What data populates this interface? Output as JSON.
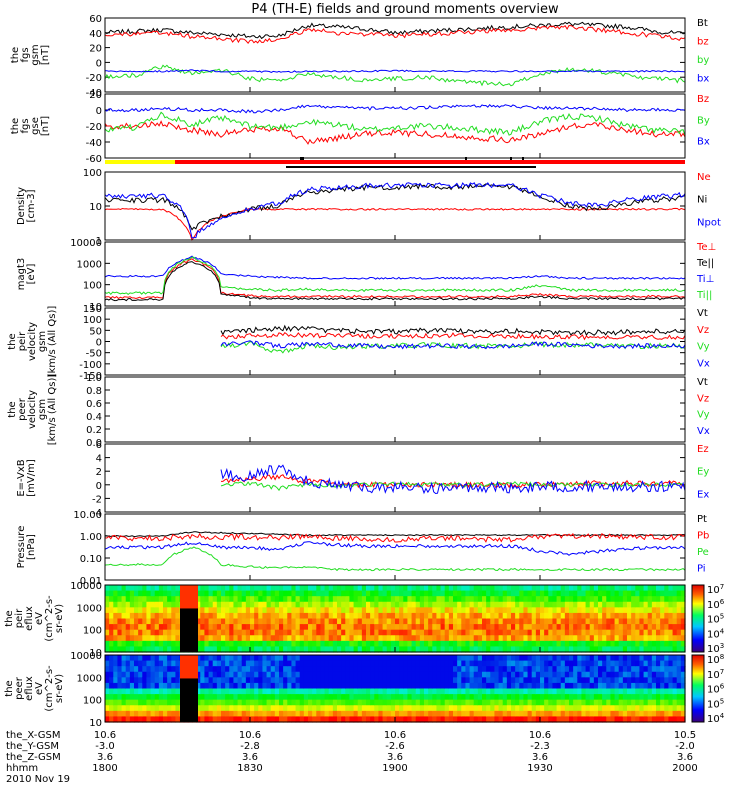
{
  "title": "P4 (TH-E) fields and ground moments overview",
  "colors": {
    "black": "#000000",
    "red": "#ff0000",
    "green": "#22dd22",
    "blue": "#0000ff",
    "yellow": "#ffff00"
  },
  "chart_data": [
    {
      "type": "line",
      "id": "fgs-gsm",
      "ylabel": [
        "the",
        "fgs",
        "gsm",
        "[nT]"
      ],
      "ylim": [
        -40,
        60
      ],
      "yticks": [
        "60",
        "40",
        "20",
        "0",
        "-20",
        "-40"
      ],
      "log": false,
      "series": [
        {
          "name": "Bt",
          "color": "black",
          "base": [
            40,
            42,
            44,
            40,
            38,
            35,
            36,
            50,
            48,
            45,
            40,
            42,
            44,
            46,
            48,
            50,
            52,
            50,
            48,
            42,
            38
          ],
          "noise": 3
        },
        {
          "name": "bz",
          "color": "red",
          "base": [
            38,
            38,
            40,
            35,
            32,
            28,
            30,
            45,
            40,
            38,
            36,
            38,
            40,
            42,
            44,
            46,
            48,
            44,
            40,
            36,
            32
          ],
          "noise": 3
        },
        {
          "name": "by",
          "color": "green",
          "base": [
            -20,
            -18,
            -5,
            -15,
            -10,
            -22,
            -25,
            -15,
            -20,
            -25,
            -22,
            -20,
            -25,
            -28,
            -30,
            -15,
            -10,
            -12,
            -18,
            -22,
            -25
          ],
          "noise": 3
        },
        {
          "name": "bx",
          "color": "blue",
          "base": [
            -12,
            -12,
            -12,
            -11,
            -12,
            -12,
            -13,
            -12,
            -12,
            -12,
            -11,
            -12,
            -12,
            -12,
            -12,
            -12,
            -12,
            -12,
            -12,
            -12,
            -12
          ],
          "noise": 1
        }
      ]
    },
    {
      "type": "line",
      "id": "fgs-gse",
      "ylabel": [
        "the",
        "fgs",
        "gse",
        "[nT]"
      ],
      "ylim": [
        -60,
        20
      ],
      "yticks": [
        "20",
        "0",
        "-20",
        "-40",
        "-60"
      ],
      "log": false,
      "series": [
        {
          "name": "Bz",
          "color": "red",
          "base": [
            -20,
            -20,
            -18,
            -25,
            -30,
            -25,
            -22,
            -40,
            -35,
            -30,
            -28,
            -30,
            -32,
            -35,
            -38,
            -30,
            -20,
            -18,
            -25,
            -30,
            -30
          ],
          "noise": 4
        },
        {
          "name": "By",
          "color": "green",
          "base": [
            -25,
            -22,
            -5,
            -18,
            -10,
            -20,
            -22,
            -15,
            -18,
            -25,
            -22,
            -20,
            -22,
            -25,
            -28,
            -15,
            -8,
            -10,
            -20,
            -25,
            -28
          ],
          "noise": 4
        },
        {
          "name": "Bx",
          "color": "blue",
          "base": [
            0,
            0,
            2,
            0,
            0,
            -2,
            0,
            5,
            3,
            2,
            2,
            3,
            4,
            5,
            5,
            3,
            2,
            2,
            0,
            0,
            0
          ],
          "noise": 2
        }
      ]
    },
    {
      "type": "line",
      "id": "density",
      "ylabel": [
        "Density",
        "[cm-3]"
      ],
      "ylim": [
        1,
        100
      ],
      "yticks": [
        "100",
        "10",
        "1"
      ],
      "log": true,
      "series": [
        {
          "name": "Ne",
          "color": "red",
          "base": [
            8,
            8,
            8,
            1,
            5,
            8,
            8,
            8,
            8,
            8,
            8,
            8,
            8,
            8,
            8,
            8,
            8,
            8,
            8,
            8,
            8
          ],
          "noise": 0.05
        },
        {
          "name": "Ni",
          "color": "black",
          "base": [
            15,
            15,
            15,
            2,
            5,
            8,
            10,
            25,
            30,
            35,
            35,
            38,
            35,
            38,
            35,
            18,
            10,
            8,
            12,
            15,
            18
          ],
          "noise": 0.15
        },
        {
          "name": "Npot",
          "color": "blue",
          "base": [
            20,
            20,
            20,
            1,
            4,
            8,
            12,
            30,
            35,
            40,
            40,
            42,
            40,
            42,
            40,
            20,
            12,
            10,
            15,
            18,
            22
          ],
          "noise": 0.15
        }
      ]
    },
    {
      "type": "line",
      "id": "temperature",
      "ylabel": [
        "magt3",
        "[eV]"
      ],
      "ylim": [
        10,
        10000
      ],
      "yticks": [
        "10000",
        "1000",
        "100",
        "10"
      ],
      "log": true,
      "series": [
        {
          "name": "Te⊥",
          "color": "red",
          "base": [
            25,
            25,
            25,
            1500,
            40,
            30,
            28,
            28,
            28,
            28,
            28,
            28,
            28,
            28,
            28,
            35,
            28,
            28,
            28,
            28,
            28
          ],
          "noise": 0.1
        },
        {
          "name": "Te||",
          "color": "black",
          "base": [
            20,
            20,
            20,
            1200,
            35,
            25,
            22,
            22,
            22,
            22,
            22,
            22,
            22,
            22,
            22,
            28,
            22,
            22,
            22,
            22,
            22
          ],
          "noise": 0.1
        },
        {
          "name": "Ti⊥",
          "color": "blue",
          "base": [
            250,
            250,
            250,
            2000,
            300,
            250,
            220,
            200,
            200,
            200,
            200,
            200,
            200,
            200,
            200,
            250,
            200,
            200,
            200,
            200,
            200
          ],
          "noise": 0.08
        },
        {
          "name": "Ti||",
          "color": "green",
          "base": [
            40,
            40,
            40,
            1800,
            80,
            60,
            55,
            60,
            55,
            55,
            55,
            55,
            55,
            55,
            55,
            90,
            55,
            55,
            55,
            55,
            55
          ],
          "noise": 0.12
        }
      ]
    },
    {
      "type": "line",
      "id": "peir-velocity",
      "ylabel": [
        "the",
        "peir",
        "velocity",
        "gsm",
        "[km/s (All Qs)]"
      ],
      "ylim": [
        -150,
        150
      ],
      "yticks": [
        "150",
        "100",
        "50",
        "0",
        "-50",
        "-100",
        "-150"
      ],
      "log": false,
      "series": [
        {
          "name": "Vt",
          "color": "black",
          "base": [
            null,
            null,
            null,
            null,
            40,
            50,
            60,
            55,
            50,
            45,
            45,
            48,
            50,
            45,
            48,
            42,
            40,
            40,
            42,
            45,
            45
          ],
          "noise": 12
        },
        {
          "name": "Vz",
          "color": "red",
          "base": [
            null,
            null,
            null,
            null,
            20,
            25,
            30,
            28,
            25,
            25,
            24,
            25,
            28,
            25,
            24,
            22,
            20,
            20,
            20,
            20,
            20
          ],
          "noise": 10
        },
        {
          "name": "Vy",
          "color": "green",
          "base": [
            null,
            null,
            null,
            null,
            -20,
            -10,
            -50,
            -20,
            -25,
            -20,
            -20,
            -15,
            -20,
            -20,
            -20,
            -15,
            -15,
            -15,
            -20,
            -20,
            -20
          ],
          "noise": 12
        },
        {
          "name": "Vx",
          "color": "blue",
          "base": [
            null,
            null,
            null,
            null,
            -10,
            -5,
            -20,
            -10,
            -15,
            -20,
            -25,
            -20,
            -20,
            -25,
            -20,
            -10,
            -15,
            -20,
            -20,
            -20,
            -20
          ],
          "noise": 10
        }
      ]
    },
    {
      "type": "line",
      "id": "peer-velocity",
      "ylabel": [
        "the",
        "peer",
        "velocity",
        "gsm",
        "[km/s (All Qs)]"
      ],
      "ylim": [
        0,
        1
      ],
      "yticks": [
        "1.0",
        "0.8",
        "0.6",
        "0.4",
        "0.2",
        "0.0"
      ],
      "log": false,
      "series": [
        {
          "name": "Vt",
          "color": "black",
          "base": [],
          "noise": 0
        },
        {
          "name": "Vz",
          "color": "red",
          "base": [],
          "noise": 0
        },
        {
          "name": "Vy",
          "color": "green",
          "base": [],
          "noise": 0
        },
        {
          "name": "Vx",
          "color": "blue",
          "base": [],
          "noise": 0
        }
      ]
    },
    {
      "type": "line",
      "id": "e-field",
      "ylabel": [
        "E=-VxB",
        "[mV/m]"
      ],
      "ylim": [
        -4,
        6
      ],
      "yticks": [
        "6",
        "4",
        "2",
        "0",
        "-2",
        "-4"
      ],
      "log": false,
      "series": [
        {
          "name": "Ez",
          "color": "red",
          "base": [
            null,
            null,
            null,
            null,
            0.5,
            0.8,
            1.2,
            0.5,
            0.2,
            0,
            0,
            0,
            0,
            0,
            0,
            0,
            0.2,
            0.2,
            0.2,
            0.2,
            0.2
          ],
          "noise": 0.4
        },
        {
          "name": "Ey",
          "color": "green",
          "base": [
            null,
            null,
            null,
            null,
            0,
            0.2,
            -0.5,
            0,
            -0.2,
            0,
            0.2,
            0,
            0,
            0,
            0.2,
            0,
            0,
            0,
            0,
            0,
            0
          ],
          "noise": 0.3
        },
        {
          "name": "Ex",
          "color": "blue",
          "base": [
            null,
            null,
            null,
            null,
            1.5,
            1.2,
            2.5,
            0.5,
            0,
            -0.5,
            -0.3,
            -0.5,
            -0.5,
            -0.3,
            -0.5,
            -0.2,
            -0.3,
            -0.2,
            -0.3,
            -0.3,
            -0.3
          ],
          "noise": 0.8
        }
      ]
    },
    {
      "type": "line",
      "id": "pressure",
      "ylabel": [
        "Pressure",
        "[nPa]"
      ],
      "ylim": [
        0.01,
        10
      ],
      "yticks": [
        "10.00",
        "1.00",
        "0.10",
        "0.01"
      ],
      "log": true,
      "series": [
        {
          "name": "Pt",
          "color": "black",
          "base": [
            1,
            1,
            1,
            1.5,
            1.4,
            1.3,
            1.2,
            1.1,
            1.1,
            1.1,
            1.1,
            1.1,
            1.1,
            1.1,
            1.1,
            1.1,
            1.1,
            1.1,
            1.1,
            1.1,
            1.1
          ],
          "noise": 0.05
        },
        {
          "name": "Pb",
          "color": "red",
          "base": [
            0.8,
            0.8,
            0.8,
            1.0,
            0.9,
            0.9,
            0.8,
            1.0,
            0.8,
            0.7,
            0.7,
            0.8,
            0.8,
            0.7,
            0.7,
            0.9,
            1.0,
            1.0,
            0.9,
            0.9,
            0.9
          ],
          "noise": 0.25
        },
        {
          "name": "Pe",
          "color": "green",
          "base": [
            0.05,
            0.05,
            0.05,
            0.3,
            0.05,
            0.04,
            0.035,
            0.04,
            0.03,
            0.03,
            0.03,
            0.03,
            0.03,
            0.03,
            0.03,
            0.03,
            0.03,
            0.03,
            0.03,
            0.03,
            0.03
          ],
          "noise": 0.1
        },
        {
          "name": "Pi",
          "color": "blue",
          "base": [
            0.3,
            0.3,
            0.3,
            0.5,
            0.3,
            0.3,
            0.25,
            0.5,
            0.4,
            0.35,
            0.35,
            0.35,
            0.35,
            0.35,
            0.35,
            0.2,
            0.15,
            0.2,
            0.25,
            0.3,
            0.3
          ],
          "noise": 0.15
        }
      ]
    },
    {
      "type": "heatmap",
      "id": "peir-spectrogram",
      "ylabel": [
        "the",
        "peir",
        "eflux",
        "eV",
        "(cm^2-s-",
        "sr-eV)"
      ],
      "yticks": [
        "10000",
        "1000",
        "100",
        "10"
      ],
      "cbar_ticks": [
        "10^7",
        "10^6",
        "10^5",
        "10^4",
        "10^3"
      ]
    },
    {
      "type": "heatmap",
      "id": "peer-spectrogram",
      "ylabel": [
        "the",
        "peer",
        "eflux",
        "eV",
        "(cm^2-s-",
        "sr-eV)"
      ],
      "yticks": [
        "10000",
        "1000",
        "100",
        "10"
      ],
      "cbar_ticks": [
        "10^8",
        "10^7",
        "10^6",
        "10^5",
        "10^4"
      ]
    }
  ],
  "legend_labels": [
    [
      "Bt",
      "bz",
      "by",
      "bx"
    ],
    [
      "Bz",
      "By",
      "Bx"
    ],
    [
      "Ne",
      "Ni",
      "Npot"
    ],
    [
      "Te⊥",
      "Te||",
      "Ti⊥",
      "Ti||"
    ],
    [
      "Vt",
      "Vz",
      "Vy",
      "Vx"
    ],
    [
      "Vt",
      "Vz",
      "Vy",
      "Vx"
    ],
    [
      "Ez",
      "Ey",
      "Ex"
    ],
    [
      "Pt",
      "Pb",
      "Pe",
      "Pi"
    ]
  ],
  "x_axis": {
    "row_labels": [
      "the_X-GSM",
      "the_Y-GSM",
      "the_Z-GSM",
      "hhmm",
      "2010 Nov 19"
    ],
    "ticks": [
      {
        "x": "10.6",
        "y": "-3.0",
        "z": "3.6",
        "t": "1800"
      },
      {
        "x": "10.6",
        "y": "-2.8",
        "z": "3.6",
        "t": "1830"
      },
      {
        "x": "10.6",
        "y": "-2.6",
        "z": "3.6",
        "t": "1900"
      },
      {
        "x": "10.6",
        "y": "-2.3",
        "z": "3.6",
        "t": "1930"
      },
      {
        "x": "10.5",
        "y": "-2.0",
        "z": "3.6",
        "t": "2000"
      }
    ]
  }
}
